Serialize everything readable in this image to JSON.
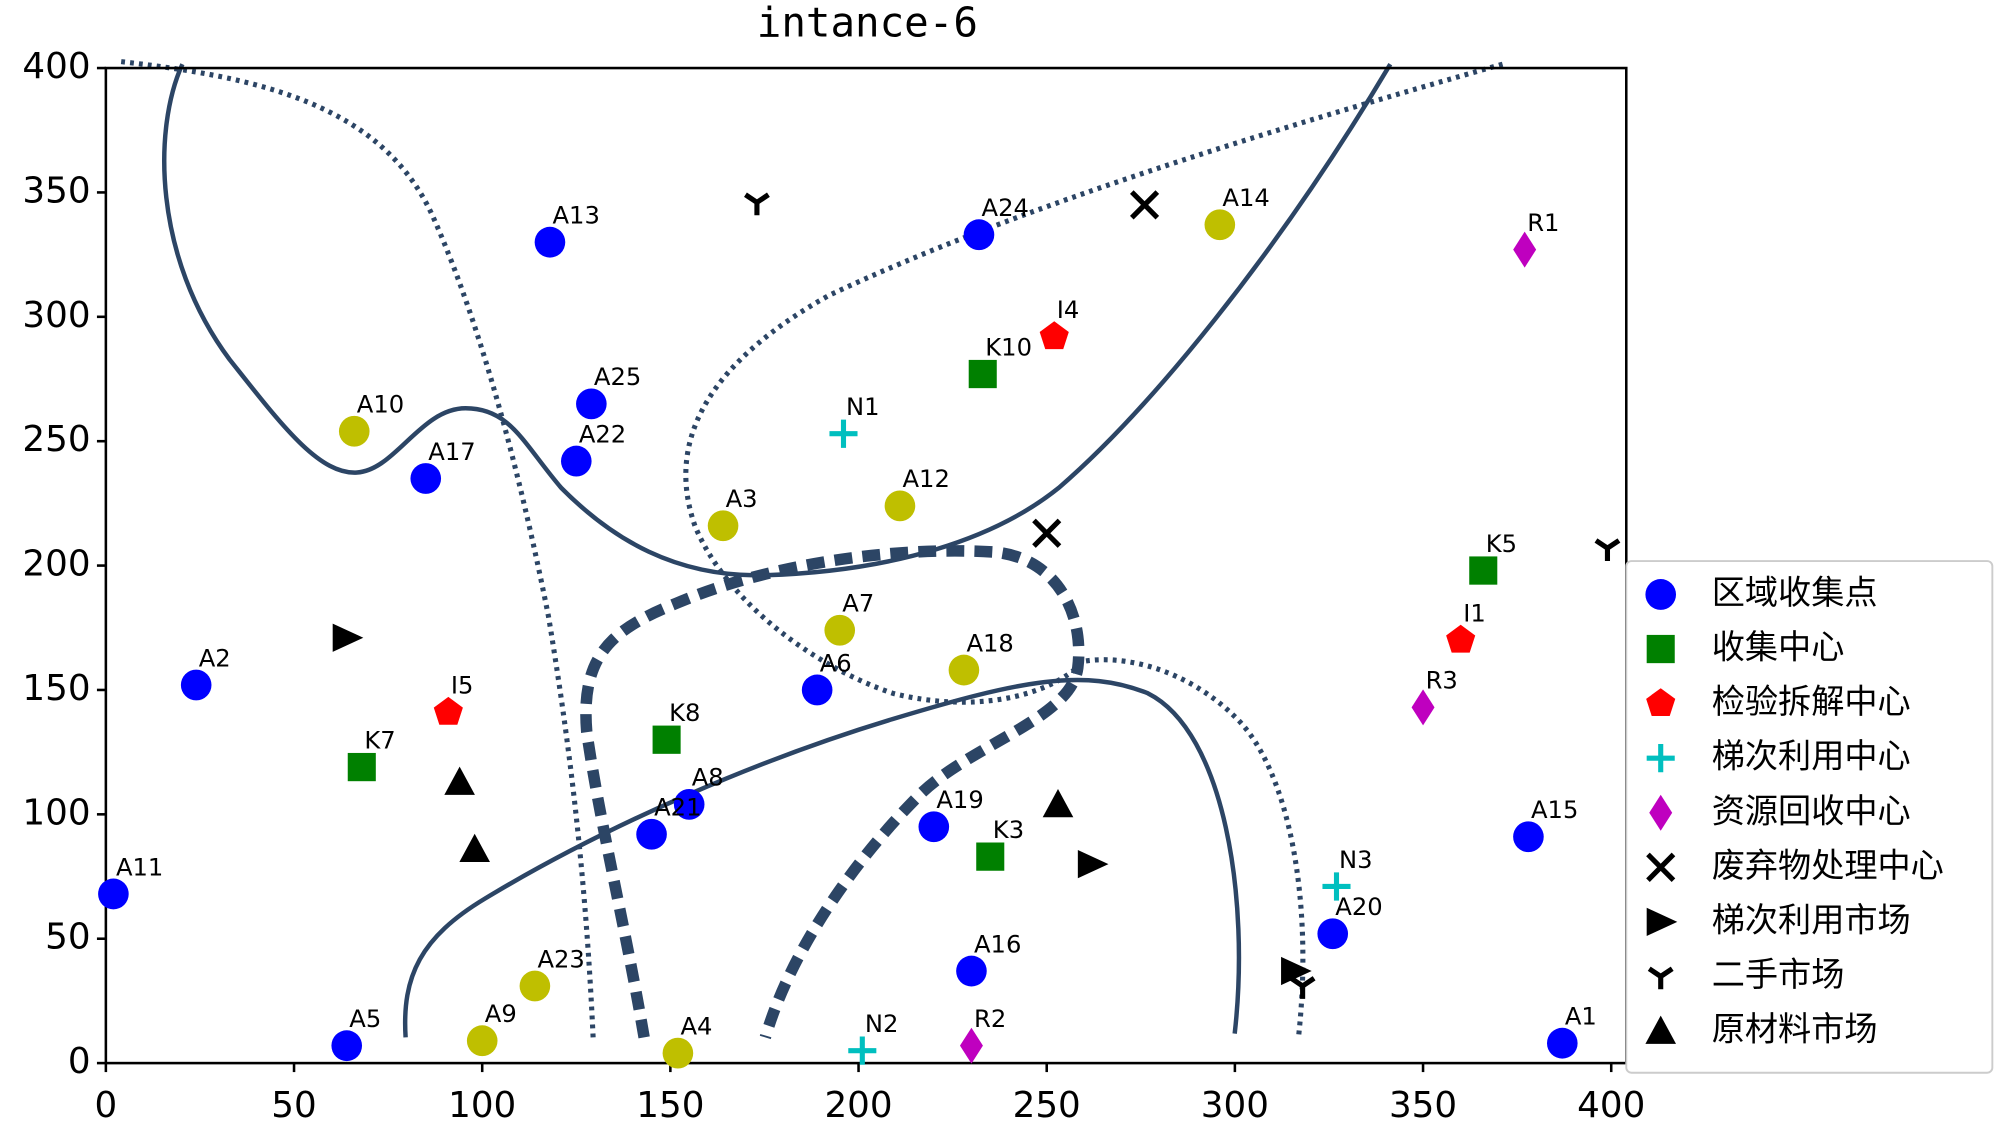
{
  "chart_data": {
    "type": "scatter",
    "title": "intance-6",
    "xlim": [
      0,
      404
    ],
    "ylim": [
      0,
      400
    ],
    "xticks": [
      0,
      50,
      100,
      150,
      200,
      250,
      300,
      350,
      400
    ],
    "yticks": [
      0,
      50,
      100,
      150,
      200,
      250,
      300,
      350,
      400
    ],
    "legend": "right",
    "series": [
      {
        "name": "区域收集点",
        "color": "#0000ff",
        "marker": "circle",
        "labels": [
          "A1",
          "A2",
          "A5",
          "A6",
          "A8",
          "A11",
          "A13",
          "A15",
          "A16",
          "A17",
          "A19",
          "A20",
          "A21",
          "A22",
          "A24",
          "A25"
        ],
        "x": [
          387,
          24,
          64,
          189,
          155,
          2,
          118,
          378,
          230,
          85,
          220,
          326,
          145,
          125,
          232,
          129
        ],
        "y": [
          8,
          152,
          7,
          150,
          104,
          68,
          330,
          91,
          37,
          235,
          95,
          52,
          92,
          242,
          333,
          265
        ]
      },
      {
        "color": "#bfbf00",
        "marker": "circle",
        "labels": [
          "A3",
          "A4",
          "A7",
          "A9",
          "A10",
          "A12",
          "A14",
          "A18",
          "A23"
        ],
        "x": [
          164,
          152,
          195,
          100,
          66,
          211,
          296,
          228,
          114
        ],
        "y": [
          216,
          4,
          174,
          9,
          254,
          224,
          337,
          158,
          31
        ]
      },
      {
        "name": "收集中心",
        "color": "#008000",
        "marker": "square",
        "labels": [
          "K3",
          "K5",
          "K7",
          "K8",
          "K10"
        ],
        "x": [
          235,
          366,
          68,
          149,
          233
        ],
        "y": [
          83,
          198,
          119,
          130,
          277
        ]
      },
      {
        "name": "检验拆解中心",
        "color": "#ff0000",
        "marker": "pentagon",
        "labels": [
          "I1",
          "I4",
          "I5"
        ],
        "x": [
          360,
          252,
          91
        ],
        "y": [
          170,
          292,
          141
        ]
      },
      {
        "name": "梯次利用中心",
        "color": "#00bfbf",
        "marker": "plus",
        "labels": [
          "N1",
          "N2",
          "N3"
        ],
        "x": [
          196,
          201,
          327
        ],
        "y": [
          253,
          5,
          71
        ]
      },
      {
        "name": "资源回收中心",
        "color": "#bf00bf",
        "marker": "diamond",
        "labels": [
          "R1",
          "R2",
          "R3"
        ],
        "x": [
          377,
          230,
          350
        ],
        "y": [
          327,
          7,
          143
        ]
      },
      {
        "name": "废弃物处理中心",
        "color": "#000000",
        "marker": "x",
        "x": [
          276,
          250
        ],
        "y": [
          345,
          213
        ]
      },
      {
        "name": "梯次利用市场",
        "color": "#000000",
        "marker": "triangle-right",
        "x": [
          64,
          262,
          316
        ],
        "y": [
          171,
          80,
          37
        ]
      },
      {
        "name": "二手市场",
        "color": "#000000",
        "marker": "tri-down",
        "x": [
          173,
          399,
          318
        ],
        "y": [
          346,
          207,
          31
        ]
      },
      {
        "name": "原材料市场",
        "color": "#000000",
        "marker": "triangle-up",
        "x": [
          94,
          98,
          253
        ],
        "y": [
          113,
          86,
          104
        ]
      }
    ]
  }
}
